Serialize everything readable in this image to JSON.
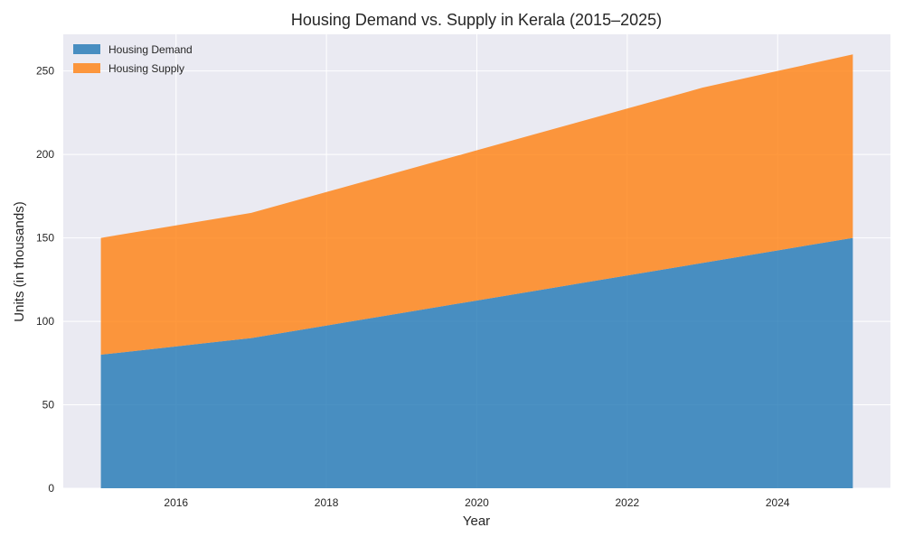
{
  "chart_data": {
    "type": "area",
    "stacked": true,
    "title": "Housing Demand vs. Supply in Kerala (2015–2025)",
    "xlabel": "Year",
    "ylabel": "Units (in thousands)",
    "x": [
      2015,
      2016,
      2017,
      2018,
      2019,
      2020,
      2021,
      2022,
      2023,
      2024,
      2025
    ],
    "series": [
      {
        "name": "Housing Demand",
        "color": "#1f77b4",
        "values": [
          80,
          85,
          90,
          97.5,
          105,
          112.5,
          120,
          127.5,
          135,
          142.5,
          150
        ]
      },
      {
        "name": "Housing Supply",
        "color": "#ff7f0e",
        "values": [
          70,
          72.5,
          75,
          80,
          85,
          90,
          95,
          100,
          105,
          107.5,
          110
        ]
      }
    ],
    "xlim": [
      2014.5,
      2025.5
    ],
    "ylim": [
      0,
      272
    ],
    "xticks": [
      2016,
      2018,
      2020,
      2022,
      2024
    ],
    "yticks": [
      0,
      50,
      100,
      150,
      200,
      250
    ],
    "grid": true,
    "legend_position": "top-left"
  }
}
